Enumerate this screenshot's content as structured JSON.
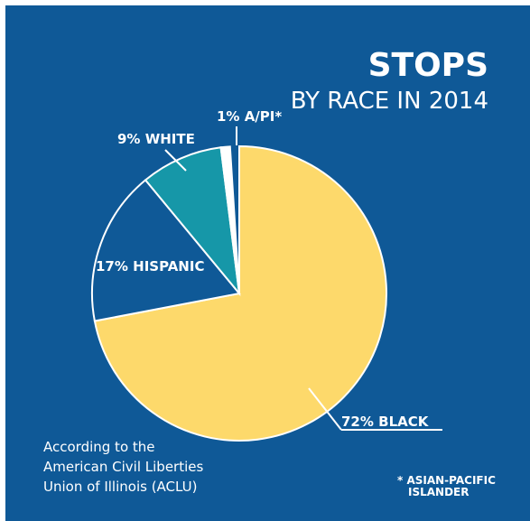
{
  "chart_data": {
    "type": "pie",
    "title": "STOPS",
    "subtitle": "BY RACE IN 2014",
    "categories": [
      "BLACK",
      "HISPANIC",
      "WHITE",
      "A/PI*"
    ],
    "values": [
      72,
      17,
      9,
      1
    ],
    "value_labels": [
      "72%",
      "17%",
      "9%",
      "1%"
    ],
    "colors": [
      "#fdd96b",
      "#0f5997",
      "#1697a8",
      "#ffffff"
    ],
    "source": [
      "According to the",
      "American Civil Liberties",
      "Union of Illinois (ACLU)"
    ],
    "footnote": [
      "* ASIAN-PACIFIC",
      "ISLANDER"
    ]
  }
}
